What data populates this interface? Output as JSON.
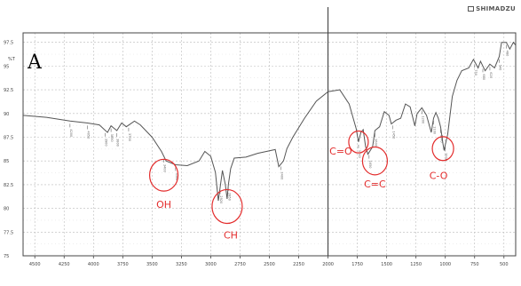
{
  "brand": "SHIMADZU",
  "chart_data": {
    "type": "line",
    "panel_label": "A",
    "y_unit_label": "%T",
    "xlim": [
      4600,
      400
    ],
    "ylim": [
      75,
      98.5
    ],
    "x_ticks": [
      "4500",
      "4250",
      "4000",
      "3750",
      "3500",
      "3250",
      "3000",
      "2750",
      "2500",
      "2250",
      "2000",
      "1750",
      "1500",
      "1250",
      "1000",
      "750",
      "500"
    ],
    "y_ticks": [
      "97.5",
      "95",
      "92.5",
      "90",
      "87.5",
      "85",
      "82.5",
      "80",
      "77.5",
      "75"
    ],
    "series": [
      {
        "x": [
          4600,
          4400,
          4200,
          4050,
          3950,
          3880,
          3850,
          3800,
          3760,
          3720,
          3650,
          3600,
          3500,
          3420,
          3380,
          3300,
          3200,
          3100,
          3050,
          3000,
          2960,
          2935,
          2900,
          2875,
          2860,
          2850,
          2830,
          2800,
          2700,
          2600,
          2450,
          2420,
          2380,
          2350,
          2300,
          2200,
          2100,
          2000,
          1900,
          1820,
          1760,
          1740,
          1720,
          1700,
          1680,
          1660,
          1620,
          1600,
          1560,
          1520,
          1480,
          1460,
          1420,
          1380,
          1340,
          1300,
          1260,
          1240,
          1200,
          1160,
          1120,
          1100,
          1080,
          1060,
          1040,
          1020,
          1010,
          1000,
          980,
          960,
          940,
          900,
          860,
          800,
          760,
          720,
          700,
          660,
          620,
          580,
          540,
          520,
          480,
          450,
          420,
          400
        ],
        "y": [
          89.8,
          89.6,
          89.2,
          89.0,
          88.8,
          88.0,
          88.7,
          88.2,
          89.0,
          88.6,
          89.2,
          88.8,
          87.5,
          86.0,
          85.0,
          84.6,
          84.5,
          85.0,
          86.0,
          85.5,
          83.8,
          80.8,
          84.0,
          82.5,
          81.0,
          82.5,
          84.2,
          85.3,
          85.4,
          85.8,
          86.2,
          84.4,
          85.0,
          86.3,
          87.5,
          89.5,
          91.3,
          92.3,
          92.5,
          91.0,
          88.4,
          87.0,
          88.0,
          88.3,
          86.5,
          85.7,
          86.5,
          88.2,
          88.6,
          90.2,
          89.8,
          88.9,
          89.3,
          89.5,
          91.0,
          90.7,
          88.7,
          90.0,
          90.6,
          89.8,
          88.0,
          89.5,
          90.1,
          89.5,
          88.6,
          86.8,
          86.1,
          86.7,
          87.8,
          89.8,
          91.8,
          93.5,
          94.5,
          94.8,
          95.7,
          94.8,
          95.5,
          94.5,
          95.2,
          94.8,
          96.0,
          97.5,
          97.5,
          96.8,
          97.5,
          97.2
        ]
      }
    ],
    "peak_markers": [
      "4200",
      "4050",
      "3900",
      "3850",
      "3800",
      "3700",
      "3400",
      "3300",
      "2920",
      "2850",
      "2400",
      "1740",
      "1650",
      "1600",
      "1450",
      "1200",
      "1100",
      "1040",
      "1000",
      "750",
      "680",
      "620",
      "540",
      "480"
    ],
    "annotations": [
      {
        "label": "OH",
        "x": 3400,
        "y": 83.5
      },
      {
        "label": "CH",
        "x": 2860,
        "y": 80.2
      },
      {
        "label": "C=O",
        "x": 1740,
        "y": 87.0
      },
      {
        "label": "C=C",
        "x": 1600,
        "y": 85.0
      },
      {
        "label": "C-O",
        "x": 1020,
        "y": 86.3
      }
    ],
    "grid": true
  }
}
